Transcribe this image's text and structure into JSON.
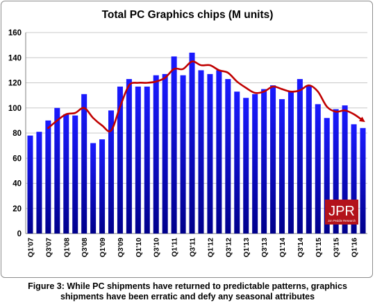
{
  "chart_data": {
    "type": "bar",
    "title": "Total PC Graphics chips (M units)",
    "xlabel": "",
    "ylabel": "",
    "ylim": [
      0,
      160
    ],
    "yticks": [
      0,
      20,
      40,
      60,
      80,
      100,
      120,
      140,
      160
    ],
    "grid": true,
    "legend": "none",
    "categories": [
      "Q1'07",
      "Q2'07",
      "Q3'07",
      "Q4'07",
      "Q1'08",
      "Q2'08",
      "Q3'08",
      "Q4'08",
      "Q1'09",
      "Q2'09",
      "Q3'09",
      "Q4'09",
      "Q1'10",
      "Q2'10",
      "Q3'10",
      "Q4'10",
      "Q1'11",
      "Q2'11",
      "Q3'11",
      "Q4'11",
      "Q1'12",
      "Q2'12",
      "Q3'12",
      "Q4'12",
      "Q1'13",
      "Q2'13",
      "Q3'13",
      "Q4'13",
      "Q1'14",
      "Q2'14",
      "Q3'14",
      "Q4'14",
      "Q1'15",
      "Q2'15",
      "Q3'15",
      "Q4'15",
      "Q1'16",
      "Q2'16"
    ],
    "visible_tick_labels": [
      "Q1'07",
      "Q3'07",
      "Q1'08",
      "Q3'08",
      "Q1'09",
      "Q3'09",
      "Q1'10",
      "Q3'10",
      "Q1'11",
      "Q3'11",
      "Q1'12",
      "Q3'12",
      "Q1'13",
      "Q3'13",
      "Q1'14",
      "Q3'14",
      "Q1'15",
      "Q3'15",
      "Q1'16"
    ],
    "values": [
      78,
      81,
      90,
      100,
      95,
      94,
      111,
      72,
      75,
      98,
      117,
      123,
      117,
      117,
      126,
      127,
      141,
      126,
      144,
      130,
      127,
      130,
      123,
      113,
      108,
      111,
      115,
      118,
      107,
      113,
      123,
      118,
      103,
      92,
      99,
      102,
      87,
      84
    ],
    "trend": [
      null,
      null,
      84,
      90,
      95,
      96,
      100,
      92,
      86,
      82,
      101,
      118,
      120,
      120,
      121,
      124,
      131,
      131,
      137,
      134,
      134,
      130,
      128,
      121,
      116,
      112,
      113,
      117,
      115,
      113,
      114,
      118,
      113,
      101,
      97,
      98,
      95,
      90
    ],
    "colors": {
      "bar_top": "#1a1aff",
      "bar_bottom": "#00008b",
      "trend": "#c00000",
      "grid": "#c8c8c8"
    }
  },
  "watermark": {
    "text": "JPR",
    "subtext": "Jon Peddie Research"
  },
  "caption": {
    "line1": "Figure 3: While PC shipments have returned to predictable patterns, graphics",
    "line2": "shipments have been erratic and defy any seasonal attributes"
  }
}
